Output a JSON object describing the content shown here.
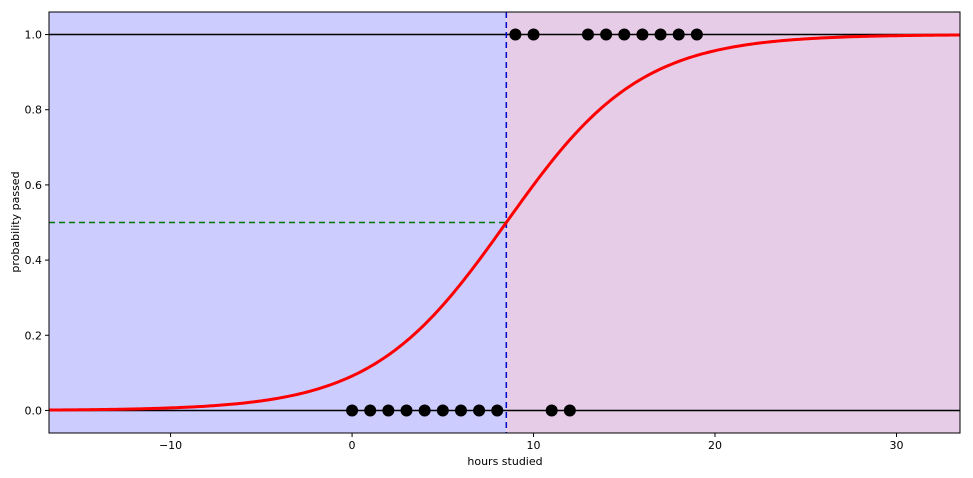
{
  "chart_data": {
    "type": "scatter",
    "xlabel": "hours studied",
    "ylabel": "probability passed",
    "xlim": [
      -16.7,
      33.5
    ],
    "ylim": [
      -0.06,
      1.06
    ],
    "xticks": [
      -10,
      0,
      10,
      20,
      30
    ],
    "xtick_labels": [
      "−10",
      "0",
      "10",
      "20",
      "30"
    ],
    "yticks": [
      0.0,
      0.2,
      0.4,
      0.6,
      0.8,
      1.0
    ],
    "ytick_labels": [
      "0.0",
      "0.2",
      "0.4",
      "0.6",
      "0.8",
      "1.0"
    ],
    "grid": false,
    "decision_boundary_x": 8.5,
    "threshold_probability": 0.5,
    "sigmoid": {
      "midpoint": 8.5,
      "slope": 0.27
    },
    "points_failed": [
      {
        "x": 0,
        "y": 0
      },
      {
        "x": 1,
        "y": 0
      },
      {
        "x": 2,
        "y": 0
      },
      {
        "x": 3,
        "y": 0
      },
      {
        "x": 4,
        "y": 0
      },
      {
        "x": 5,
        "y": 0
      },
      {
        "x": 6,
        "y": 0
      },
      {
        "x": 7,
        "y": 0
      },
      {
        "x": 8,
        "y": 0
      },
      {
        "x": 11,
        "y": 0
      },
      {
        "x": 12,
        "y": 0
      }
    ],
    "points_passed": [
      {
        "x": 9,
        "y": 1
      },
      {
        "x": 10,
        "y": 1
      },
      {
        "x": 13,
        "y": 1
      },
      {
        "x": 14,
        "y": 1
      },
      {
        "x": 15,
        "y": 1
      },
      {
        "x": 16,
        "y": 1
      },
      {
        "x": 17,
        "y": 1
      },
      {
        "x": 18,
        "y": 1
      },
      {
        "x": 19,
        "y": 1
      }
    ],
    "colors": {
      "region_fail": "#ccccff",
      "region_pass": "#e6cce6",
      "curve": "#ff0000",
      "points": "#000000",
      "boundary": "#0000cc",
      "threshold": "#007700",
      "baseline": "#000000"
    }
  }
}
